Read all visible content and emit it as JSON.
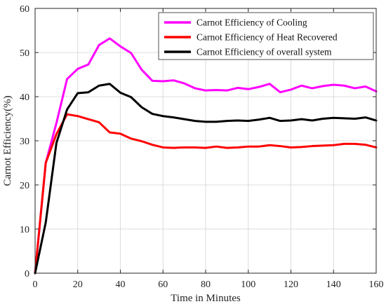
{
  "chart_data": {
    "type": "line",
    "title": "",
    "xlabel": "Time in Minutes",
    "ylabel": "Carnot Efficiency(%)",
    "xlim": [
      0,
      160
    ],
    "ylim": [
      0,
      60
    ],
    "xticks": [
      "0",
      "20",
      "40",
      "60",
      "80",
      "100",
      "120",
      "140",
      "160"
    ],
    "yticks": [
      "0",
      "10",
      "20",
      "30",
      "40",
      "50",
      "60"
    ],
    "grid": true,
    "legend_position": "top-right",
    "x": [
      0,
      5,
      10,
      15,
      20,
      25,
      30,
      35,
      40,
      45,
      50,
      55,
      60,
      65,
      70,
      75,
      80,
      85,
      90,
      95,
      100,
      105,
      110,
      115,
      120,
      125,
      130,
      135,
      140,
      145,
      150,
      155,
      160
    ],
    "series": [
      {
        "name": "Carnot Efficiency of Cooling",
        "color": "#ff00ff",
        "values": [
          0,
          25,
          34,
          44,
          46.3,
          47.3,
          51.7,
          53.2,
          51.4,
          49.9,
          46.1,
          43.6,
          43.5,
          43.7,
          43.0,
          41.9,
          41.4,
          41.5,
          41.4,
          42.0,
          41.7,
          42.2,
          42.9,
          41.0,
          41.6,
          42.5,
          41.9,
          42.4,
          42.7,
          42.5,
          41.9,
          42.3,
          41.2
        ]
      },
      {
        "name": "Carnot Efficiency of Heat Recovered",
        "color": "#ff0000",
        "values": [
          0,
          25,
          31.5,
          36.0,
          35.6,
          34.9,
          34.2,
          31.9,
          31.6,
          30.5,
          29.9,
          29.1,
          28.5,
          28.4,
          28.5,
          28.5,
          28.4,
          28.7,
          28.4,
          28.5,
          28.7,
          28.7,
          29.0,
          28.8,
          28.5,
          28.6,
          28.8,
          28.9,
          29.0,
          29.3,
          29.3,
          29.1,
          28.5
        ]
      },
      {
        "name": "Carnot Efficiency of overall system",
        "color": "#000000",
        "values": [
          0,
          11.5,
          29.5,
          37.1,
          40.8,
          41.0,
          42.5,
          42.9,
          40.9,
          39.9,
          37.6,
          36.1,
          35.6,
          35.3,
          34.9,
          34.5,
          34.3,
          34.3,
          34.5,
          34.6,
          34.5,
          34.8,
          35.2,
          34.5,
          34.6,
          34.9,
          34.6,
          35.0,
          35.2,
          35.1,
          35.0,
          35.3,
          34.6
        ]
      }
    ]
  }
}
